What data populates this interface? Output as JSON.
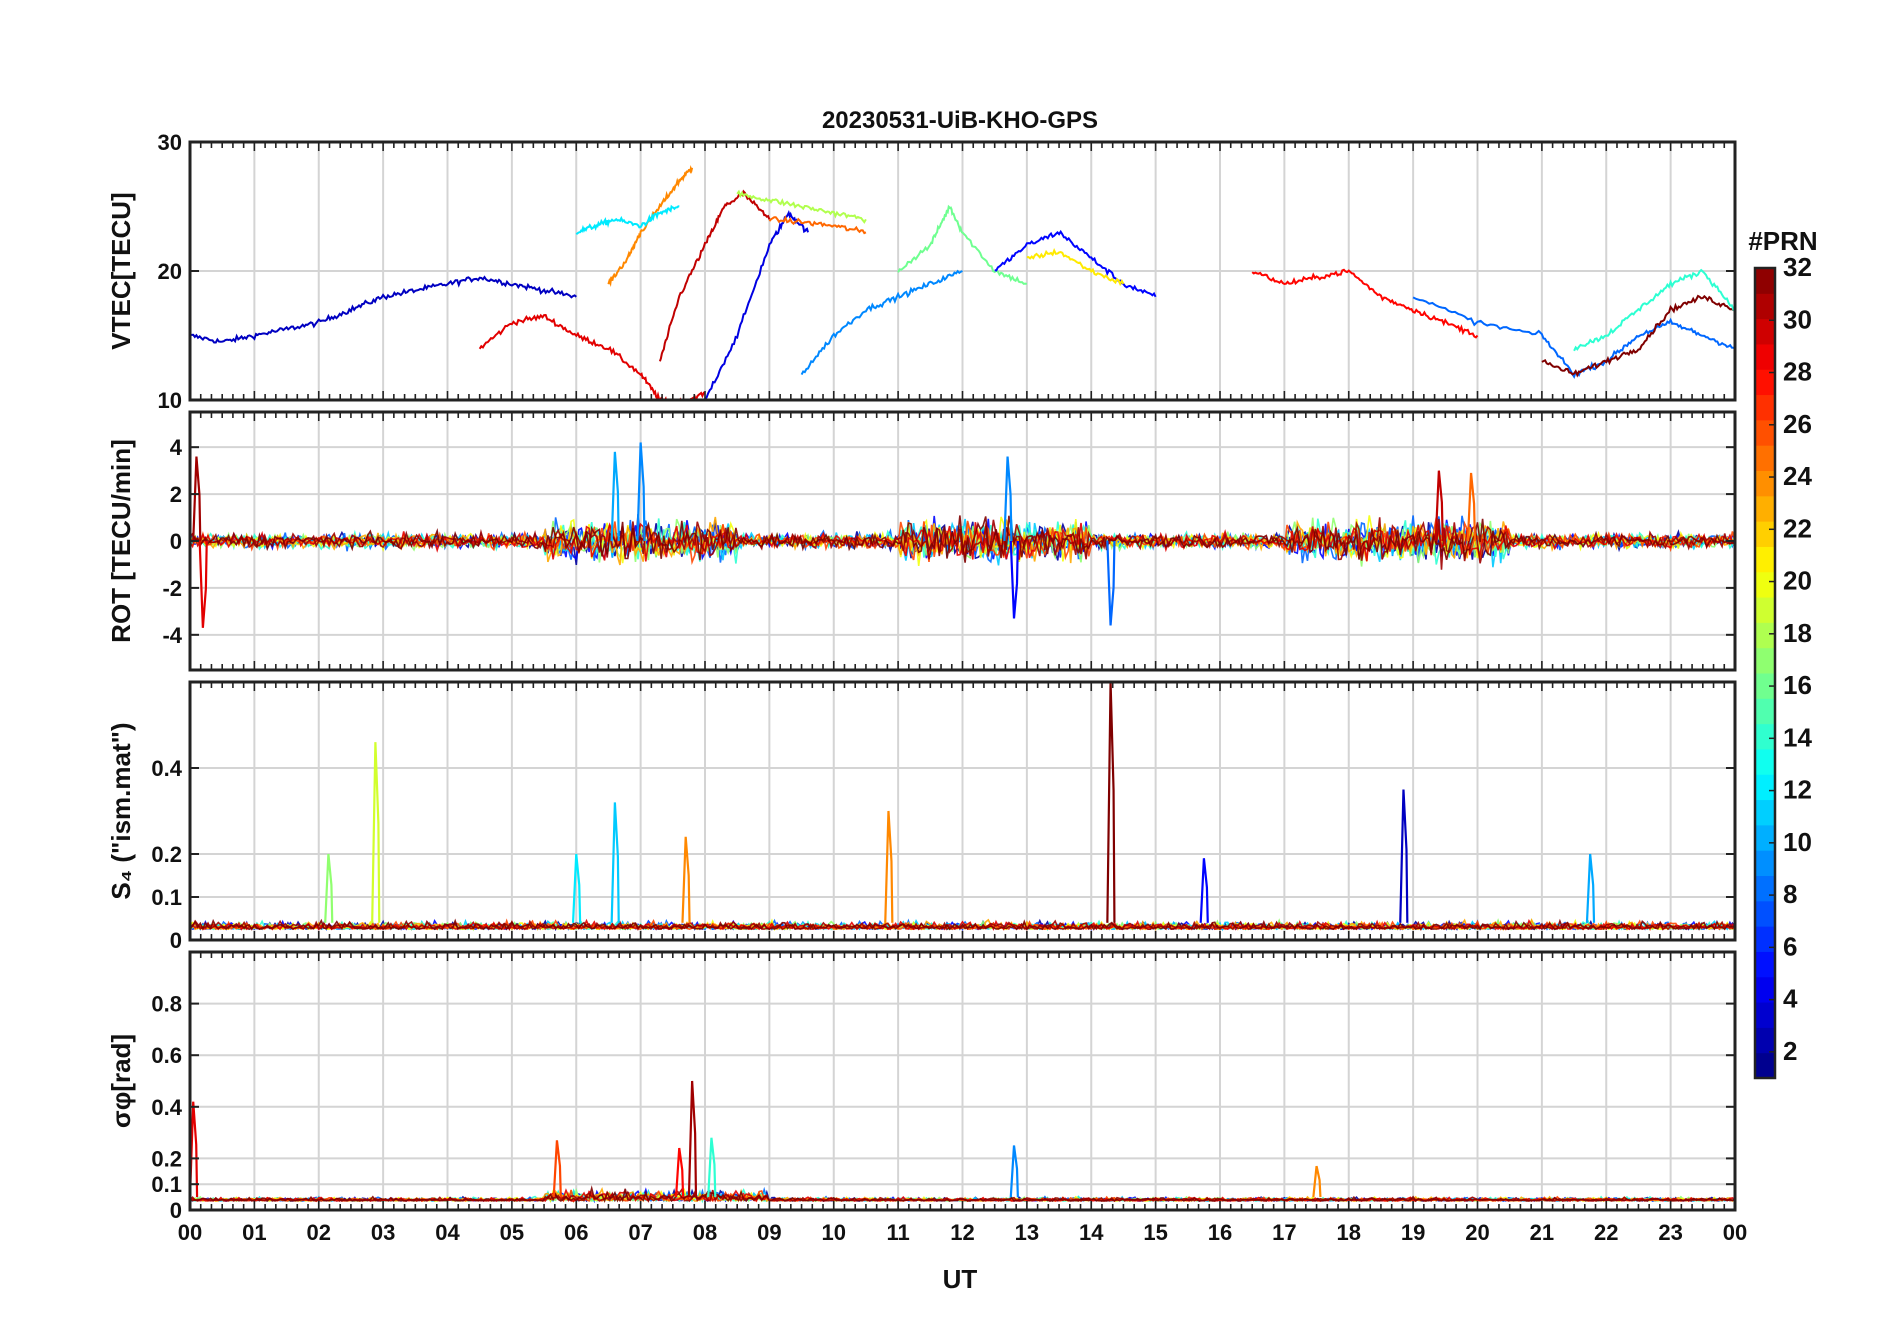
{
  "chart_data": {
    "type": "line",
    "title": "20230531-UiB-KHO-GPS",
    "xlabel": "UT",
    "x_ticks": [
      "00",
      "01",
      "02",
      "03",
      "04",
      "05",
      "06",
      "07",
      "08",
      "09",
      "10",
      "11",
      "12",
      "13",
      "14",
      "15",
      "16",
      "17",
      "18",
      "19",
      "20",
      "21",
      "22",
      "23",
      "00"
    ],
    "xlim": [
      0,
      24
    ],
    "grid": true,
    "colormap": "jet",
    "colorbar": {
      "label": "#PRN",
      "range": [
        1,
        32
      ],
      "ticks": [
        "2",
        "4",
        "6",
        "8",
        "10",
        "12",
        "14",
        "16",
        "18",
        "20",
        "22",
        "24",
        "26",
        "28",
        "30",
        "32"
      ]
    },
    "panels": [
      {
        "id": "vtec",
        "ylabel": "VTEC[TECU]",
        "ylim": [
          10,
          30
        ],
        "yticks": [
          "10",
          "20",
          "30"
        ],
        "series": [
          {
            "prn": 3,
            "x": [
              0,
              0.5,
              1,
              1.5,
              2,
              2.5,
              3,
              3.5,
              4,
              4.5,
              5,
              5.5,
              6
            ],
            "y": [
              15,
              14.5,
              15,
              15.5,
              16,
              17,
              18,
              18.5,
              19,
              19.5,
              19,
              18.5,
              18
            ]
          },
          {
            "prn": 29,
            "x": [
              4.5,
              5,
              5.5,
              6,
              6.5,
              7,
              7.3,
              7.6,
              8
            ],
            "y": [
              14,
              16,
              16.5,
              15,
              14,
              12,
              10,
              9.8,
              10.5
            ]
          },
          {
            "prn": 24,
            "x": [
              6.5,
              6.8,
              7,
              7.3,
              7.6,
              7.8
            ],
            "y": [
              19,
              21,
              23,
              25,
              27,
              28
            ]
          },
          {
            "prn": 12,
            "x": [
              6,
              6.3,
              6.6,
              7,
              7.3,
              7.6
            ],
            "y": [
              23,
              23.5,
              24,
              23.5,
              24.5,
              25
            ]
          },
          {
            "prn": 30,
            "x": [
              7.3,
              7.6,
              8,
              8.3,
              8.6,
              9
            ],
            "y": [
              13,
              18,
              22,
              25,
              26,
              24
            ]
          },
          {
            "prn": 4,
            "x": [
              8,
              8.5,
              9,
              9.3,
              9.6
            ],
            "y": [
              10,
              15,
              22,
              24.5,
              23
            ]
          },
          {
            "prn": 18,
            "x": [
              8.5,
              9,
              9.5,
              10,
              10.5
            ],
            "y": [
              26,
              25.5,
              25,
              24.5,
              24
            ]
          },
          {
            "prn": 25,
            "x": [
              9,
              9.5,
              10,
              10.5
            ],
            "y": [
              24,
              23.8,
              23.5,
              23
            ]
          },
          {
            "prn": 9,
            "x": [
              9.5,
              10,
              10.5,
              11,
              11.5,
              12
            ],
            "y": [
              12,
              15,
              17,
              18,
              19,
              20
            ]
          },
          {
            "prn": 16,
            "x": [
              11,
              11.5,
              11.8,
              12,
              12.5,
              13
            ],
            "y": [
              20,
              22,
              25,
              23,
              20,
              19
            ]
          },
          {
            "prn": 5,
            "x": [
              12.5,
              13,
              13.5,
              14,
              14.5,
              15
            ],
            "y": [
              20,
              22,
              23,
              21,
              19,
              18
            ]
          },
          {
            "prn": 21,
            "x": [
              13,
              13.5,
              14,
              14.5
            ],
            "y": [
              21,
              21.5,
              20,
              19
            ]
          },
          {
            "prn": 28,
            "x": [
              16.5,
              17,
              17.5,
              18,
              18.5,
              19,
              19.5,
              20
            ],
            "y": [
              20,
              19,
              19.5,
              20,
              18,
              17,
              16,
              15
            ]
          },
          {
            "prn": 8,
            "x": [
              19,
              20,
              21,
              21.5,
              22,
              22.5,
              23,
              23.5,
              24
            ],
            "y": [
              18,
              16,
              15,
              12,
              13,
              15,
              16,
              15,
              14
            ]
          },
          {
            "prn": 32,
            "x": [
              21,
              21.5,
              22,
              22.5,
              23,
              23.5,
              24
            ],
            "y": [
              13,
              12,
              13,
              14,
              17,
              18,
              17
            ]
          },
          {
            "prn": 14,
            "x": [
              21.5,
              22,
              22.5,
              23,
              23.5,
              24
            ],
            "y": [
              14,
              15,
              17,
              19,
              20,
              17
            ]
          }
        ]
      },
      {
        "id": "rot",
        "ylabel": "ROT [TECU/min]",
        "ylim": [
          -5.5,
          5.5
        ],
        "yticks": [
          "-4",
          "-2",
          "0",
          "2",
          "4"
        ],
        "spikes": [
          {
            "prn": 9,
            "x": 7.0,
            "y": 4.2
          },
          {
            "prn": 10,
            "x": 6.6,
            "y": 3.8
          },
          {
            "prn": 5,
            "x": 12.8,
            "y": -3.3
          },
          {
            "prn": 29,
            "x": 0.2,
            "y": -3.7
          },
          {
            "prn": 31,
            "x": 0.1,
            "y": 3.6
          },
          {
            "prn": 30,
            "x": 19.4,
            "y": 3.0
          },
          {
            "prn": 8,
            "x": 14.3,
            "y": -3.6
          },
          {
            "prn": 9,
            "x": 12.7,
            "y": 3.6
          },
          {
            "prn": 25,
            "x": 19.9,
            "y": 2.9
          }
        ]
      },
      {
        "id": "s4",
        "ylabel": "S₄ (\"ism.mat\")",
        "ylim": [
          0,
          0.6
        ],
        "yticks": [
          "0",
          "0.1",
          "0.2",
          "0.4"
        ],
        "spikes": [
          {
            "prn": 19,
            "x": 2.88,
            "y": 0.46
          },
          {
            "prn": 11,
            "x": 6.6,
            "y": 0.32
          },
          {
            "prn": 32,
            "x": 14.3,
            "y": 0.6
          },
          {
            "prn": 3,
            "x": 18.85,
            "y": 0.35
          },
          {
            "prn": 24,
            "x": 10.85,
            "y": 0.3
          },
          {
            "prn": 24,
            "x": 7.7,
            "y": 0.24
          },
          {
            "prn": 10,
            "x": 21.75,
            "y": 0.2
          },
          {
            "prn": 17,
            "x": 2.15,
            "y": 0.2
          },
          {
            "prn": 12,
            "x": 6.0,
            "y": 0.2
          },
          {
            "prn": 5,
            "x": 15.75,
            "y": 0.19
          }
        ]
      },
      {
        "id": "sigma",
        "ylabel": "σφ[rad]",
        "ylim": [
          0,
          1.0
        ],
        "yticks": [
          "0",
          "0.1",
          "0.2",
          "0.4",
          "0.6",
          "0.8"
        ],
        "spikes": [
          {
            "prn": 31,
            "x": 7.8,
            "y": 0.5
          },
          {
            "prn": 29,
            "x": 0.05,
            "y": 0.42
          },
          {
            "prn": 14,
            "x": 8.1,
            "y": 0.28
          },
          {
            "prn": 26,
            "x": 5.7,
            "y": 0.27
          },
          {
            "prn": 9,
            "x": 12.8,
            "y": 0.25
          },
          {
            "prn": 28,
            "x": 7.6,
            "y": 0.24
          },
          {
            "prn": 24,
            "x": 17.5,
            "y": 0.17
          }
        ]
      }
    ]
  }
}
